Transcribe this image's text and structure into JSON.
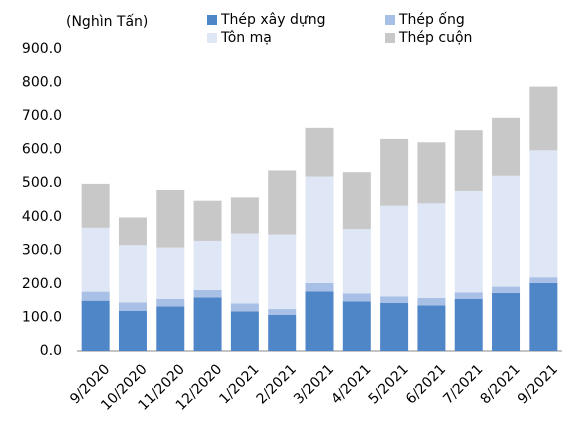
{
  "chart_data": {
    "type": "stacked_bar",
    "y_label": "(Nghìn Tấn)",
    "categories": [
      "9/2020",
      "10/2020",
      "11/2020",
      "12/2020",
      "1/2021",
      "2/2021",
      "3/2021",
      "4/2021",
      "5/2021",
      "6/2021",
      "7/2021",
      "8/2021",
      "9/2021"
    ],
    "series": [
      {
        "name": "Thép xây dựng",
        "color": "#4f86c8",
        "values": [
          150,
          120,
          133,
          160,
          118,
          108,
          178,
          148,
          143,
          136,
          155,
          173,
          203
        ]
      },
      {
        "name": "Thép ống",
        "color": "#a8bfe6",
        "values": [
          27,
          25,
          22,
          22,
          24,
          17,
          25,
          24,
          20,
          22,
          20,
          19,
          17
        ]
      },
      {
        "name": "Tôn mạ",
        "color": "#dfe7f6",
        "values": [
          190,
          170,
          153,
          146,
          208,
          222,
          317,
          191,
          270,
          282,
          302,
          330,
          378
        ]
      },
      {
        "name": "Thép cuộn",
        "color": "#c8c8c8",
        "values": [
          131,
          83,
          172,
          120,
          108,
          191,
          145,
          170,
          199,
          182,
          181,
          173,
          190
        ]
      }
    ],
    "ylim": [
      0,
      900
    ],
    "yticks": [
      {
        "value": 0,
        "label": "0.0"
      },
      {
        "value": 100,
        "label": "100.0"
      },
      {
        "value": 200,
        "label": "200.0"
      },
      {
        "value": 300,
        "label": "300.0"
      },
      {
        "value": 400,
        "label": "400.0"
      },
      {
        "value": 500,
        "label": "500.0"
      },
      {
        "value": 600,
        "label": "600.0"
      },
      {
        "value": 700,
        "label": "700.0"
      },
      {
        "value": 800,
        "label": "800.0"
      },
      {
        "value": 900,
        "label": "900.0"
      }
    ]
  }
}
